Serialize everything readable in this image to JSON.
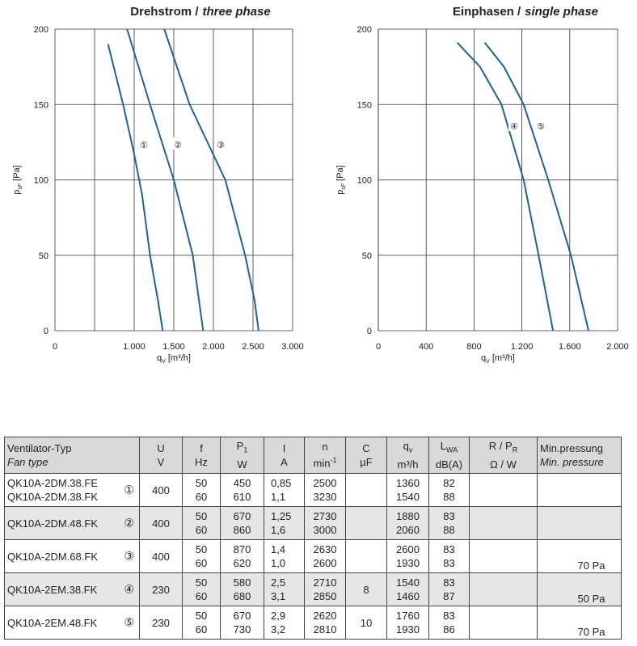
{
  "chart_data": [
    {
      "type": "line",
      "title": [
        "Drehstrom /",
        "three phase"
      ],
      "x_label": [
        "q",
        "V",
        "[m³/h]"
      ],
      "y_label": [
        "p",
        "sF",
        "[Pa]"
      ],
      "xlim": [
        0,
        3000
      ],
      "ylim": [
        0,
        200
      ],
      "xticks": [
        0,
        {
          "value": 1000,
          "label": "1.000"
        },
        {
          "value": 1500,
          "label": "1.500"
        },
        {
          "value": 2000,
          "label": "2.000"
        },
        {
          "value": 2500,
          "label": "2.500"
        },
        {
          "value": 3000,
          "label": "3.000"
        }
      ],
      "xgrid": [
        500,
        1000,
        1500,
        2000,
        2500,
        3000
      ],
      "yticks": [
        0,
        50,
        100,
        150,
        200
      ],
      "grid": true,
      "series": [
        {
          "name": "①",
          "color": "#1f6390",
          "x": [
            670,
            860,
            1000,
            1100,
            1200,
            1300,
            1360
          ],
          "y": [
            190,
            150,
            117,
            90,
            50,
            20,
            0
          ]
        },
        {
          "name": "②",
          "color": "#1f6390",
          "x": [
            910,
            1200,
            1500,
            1740,
            1870
          ],
          "y": [
            200,
            150,
            100,
            50,
            0
          ]
        },
        {
          "name": "③",
          "color": "#1f6390",
          "x": [
            1380,
            1700,
            2150,
            2400,
            2520,
            2570
          ],
          "y": [
            200,
            150,
            100,
            50,
            20,
            0
          ]
        }
      ]
    },
    {
      "type": "line",
      "title": [
        "Einphasen /",
        "single phase"
      ],
      "x_label": [
        "q",
        "V",
        "[m³/h]"
      ],
      "y_label": [
        "p",
        "sF",
        "[Pa]"
      ],
      "xlim": [
        0,
        2000
      ],
      "ylim": [
        0,
        200
      ],
      "xticks": [
        0,
        400,
        800,
        {
          "value": 1200,
          "label": "1.200"
        },
        {
          "value": 1600,
          "label": "1.600"
        },
        {
          "value": 2000,
          "label": "2.000"
        }
      ],
      "yticks": [
        0,
        50,
        100,
        150,
        200
      ],
      "grid": true,
      "series": [
        {
          "name": "④",
          "color": "#1f6390",
          "x": [
            660,
            850,
            1030,
            1215,
            1340,
            1460
          ],
          "y": [
            191,
            175,
            150,
            100,
            50,
            0
          ]
        },
        {
          "name": "⑤",
          "color": "#1f6390",
          "x": [
            890,
            1050,
            1215,
            1420,
            1610,
            1757
          ],
          "y": [
            191,
            175,
            150,
            100,
            50,
            0
          ]
        }
      ]
    }
  ],
  "table": {
    "header": [
      {
        "top": "Ventilator-Typ",
        "bottom": "Fan type"
      },
      {
        "top": "U",
        "bottom": "V"
      },
      {
        "top": "f",
        "bottom": "Hz"
      },
      {
        "top": "P",
        "sub": "1",
        "bottom": "W"
      },
      {
        "top": "I",
        "bottom": "A"
      },
      {
        "top": "n",
        "bottom": "min",
        "sup": "-1"
      },
      {
        "top": "C",
        "bottom": "µF"
      },
      {
        "top": "q",
        "sub": "v",
        "bottom": "m³/h"
      },
      {
        "top": "L",
        "sub": "WA",
        "bottom": "dB(A)"
      },
      {
        "top": "R / P",
        "sub": "R",
        "bottom": "Ω  / W"
      },
      {
        "top": "Min.pressung",
        "bottom": "Min. pressure"
      }
    ],
    "rows": [
      {
        "type": [
          "QK10A-2DM.38.FE",
          "QK10A-2DM.38.FK"
        ],
        "mark": "①",
        "cells": [
          "400",
          [
            "50",
            "60"
          ],
          [
            "450",
            "610"
          ],
          [
            "0,85",
            "1,1"
          ],
          [
            "2500",
            "3230"
          ],
          null,
          [
            "1360",
            "1540"
          ],
          [
            "82",
            "88"
          ],
          null,
          null
        ]
      },
      {
        "type": [
          "QK10A-2DM.48.FK"
        ],
        "mark": "②",
        "cells": [
          "400",
          [
            "50",
            "60"
          ],
          [
            "670",
            "860"
          ],
          [
            "1,25",
            "1,6"
          ],
          [
            "2730",
            "3000"
          ],
          null,
          [
            "1880",
            "2060"
          ],
          [
            "83",
            "88"
          ],
          null,
          null
        ]
      },
      {
        "type": [
          "QK10A-2DM.68.FK"
        ],
        "mark": "③",
        "cells": [
          "400",
          [
            "50",
            "60"
          ],
          [
            "870",
            "620"
          ],
          [
            "1,4",
            "1,0"
          ],
          [
            "2630",
            "2600"
          ],
          null,
          [
            "2600",
            "1930"
          ],
          [
            "83",
            "83"
          ],
          null,
          "70 Pa"
        ]
      },
      {
        "type": [
          "QK10A-2EM.38.FK"
        ],
        "mark": "④",
        "cells": [
          "230",
          [
            "50",
            "60"
          ],
          [
            "580",
            "680"
          ],
          [
            "2,5",
            "3,1"
          ],
          [
            "2710",
            "2850"
          ],
          "8",
          [
            "1540",
            "1460"
          ],
          [
            "83",
            "87"
          ],
          null,
          "50 Pa"
        ]
      },
      {
        "type": [
          "QK10A-2EM.48.FK"
        ],
        "mark": "⑤",
        "cells": [
          "230",
          [
            "50",
            "60"
          ],
          [
            "670",
            "730"
          ],
          [
            "2,9",
            "3,2"
          ],
          [
            "2620",
            "2810"
          ],
          "10",
          [
            "1760",
            "1930"
          ],
          [
            "83",
            "86"
          ],
          null,
          "70 Pa"
        ]
      }
    ]
  }
}
